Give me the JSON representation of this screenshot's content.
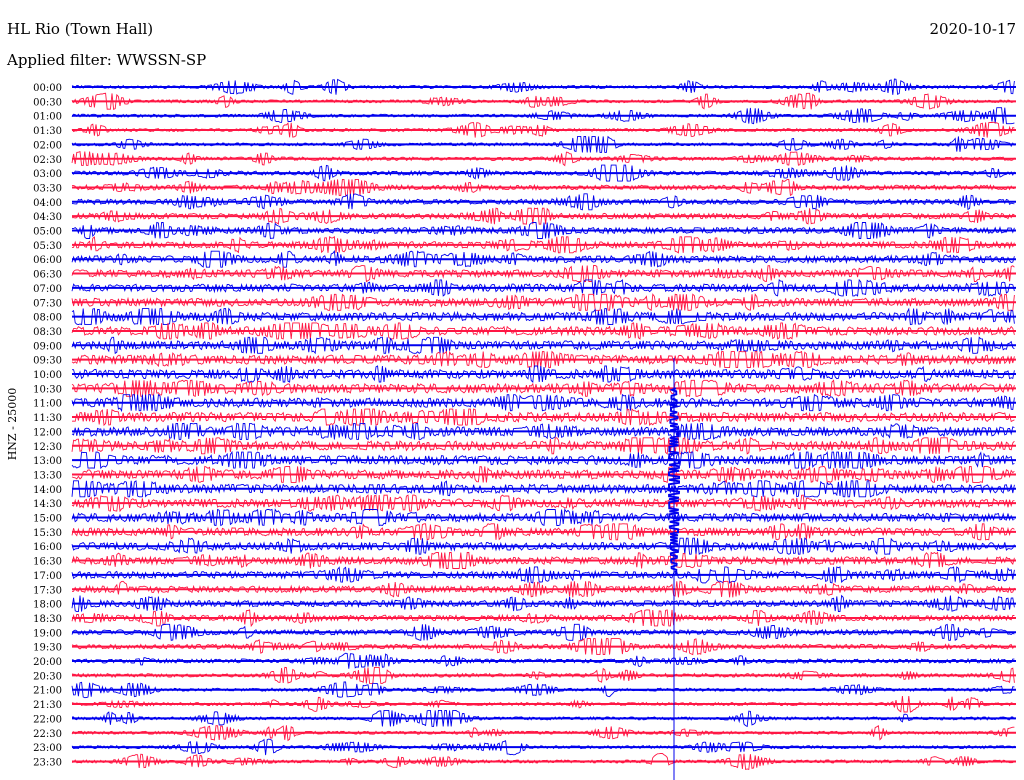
{
  "header": {
    "station": "HL Rio (Town Hall)",
    "date": "2020-10-17",
    "filter_label": "Applied filter:",
    "filter_name": "WWSSN-SP"
  },
  "chart_data": {
    "type": "line",
    "title": "HL Rio (Town Hall)",
    "ylabel": "HNZ - 25000",
    "row_labels": [
      "00:00",
      "00:30",
      "01:00",
      "01:30",
      "02:00",
      "02:30",
      "03:00",
      "03:30",
      "04:00",
      "04:30",
      "05:00",
      "05:30",
      "06:00",
      "06:30",
      "07:00",
      "07:30",
      "08:00",
      "08:30",
      "09:00",
      "09:30",
      "10:00",
      "10:30",
      "11:00",
      "11:30",
      "12:00",
      "12:30",
      "13:00",
      "13:30",
      "14:00",
      "14:30",
      "15:00",
      "15:30",
      "16:00",
      "16:30",
      "17:00",
      "17:30",
      "18:00",
      "18:30",
      "19:00",
      "19:30",
      "20:00",
      "20:30",
      "21:00",
      "21:30",
      "22:00",
      "22:30",
      "23:00",
      "23:30"
    ],
    "series_colors": [
      "#0000ee",
      "#ff1744"
    ],
    "event": {
      "rows": [
        "10:00",
        "23:30"
      ]
    }
  }
}
